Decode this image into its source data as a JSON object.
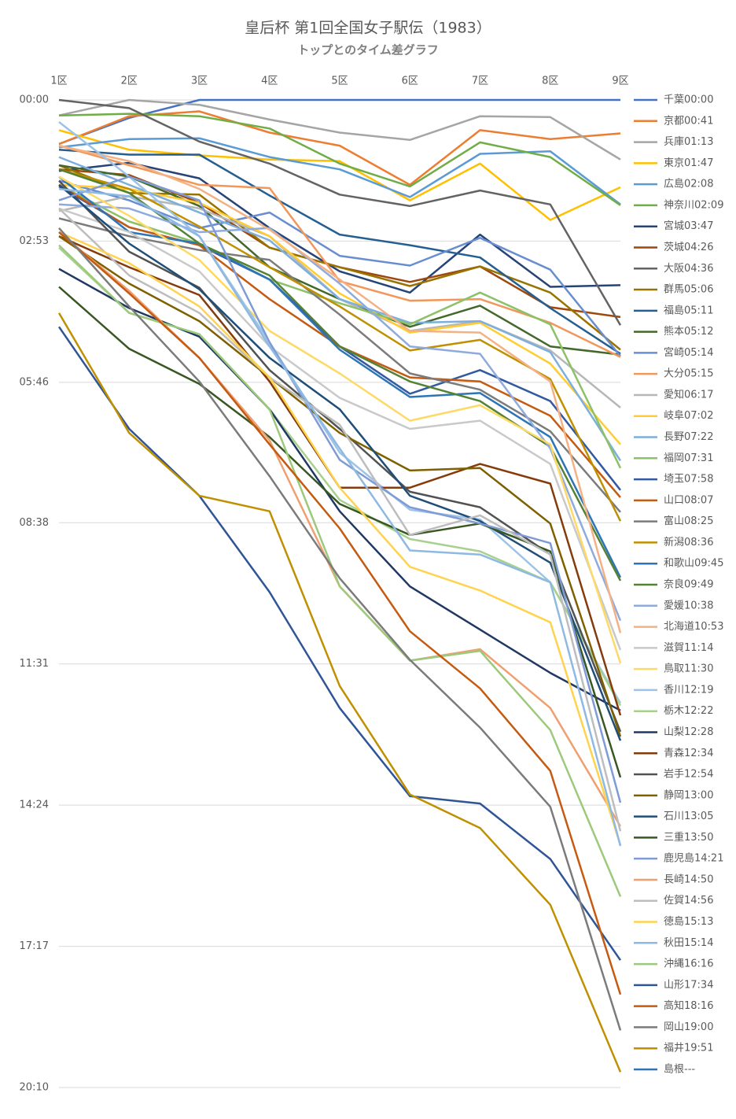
{
  "chart_data": {
    "type": "line",
    "title": "皇后杯 第1回全国女子駅伝（1983）",
    "subtitle": "トップとのタイム差グラフ",
    "categories": [
      "1区",
      "2区",
      "3区",
      "4区",
      "5区",
      "6区",
      "7区",
      "8区",
      "9区"
    ],
    "ylim": [
      0,
      1210
    ],
    "y_reversed": true,
    "x_axis_position": "top",
    "grid": true,
    "legend": "right",
    "yticks": [
      {
        "value": 0,
        "label": "00:00"
      },
      {
        "value": 173,
        "label": "02:53"
      },
      {
        "value": 346,
        "label": "05:46"
      },
      {
        "value": 518,
        "label": "08:38"
      },
      {
        "value": 691,
        "label": "11:31"
      },
      {
        "value": 864,
        "label": "14:24"
      },
      {
        "value": 1037,
        "label": "17:17"
      },
      {
        "value": 1210,
        "label": "20:10"
      }
    ],
    "series": [
      {
        "name": "千葉00:00",
        "color": "#4472C4",
        "values": [
          54,
          22,
          0,
          0,
          0,
          0,
          0,
          0,
          0
        ]
      },
      {
        "name": "京都00:41",
        "color": "#ED7D31",
        "values": [
          54,
          20,
          14,
          40,
          56,
          104,
          37,
          48,
          41
        ]
      },
      {
        "name": "兵庫01:13",
        "color": "#A5A5A5",
        "values": [
          19,
          0,
          6,
          24,
          40,
          49,
          20,
          21,
          73
        ]
      },
      {
        "name": "東京01:47",
        "color": "#FFC000",
        "values": [
          37,
          61,
          68,
          73,
          75,
          123,
          78,
          147,
          107
        ]
      },
      {
        "name": "広島02:08",
        "color": "#5B9BD5",
        "values": [
          58,
          48,
          47,
          70,
          85,
          119,
          66,
          63,
          128
        ]
      },
      {
        "name": "神奈川02:09",
        "color": "#70AD47",
        "values": [
          19,
          17,
          20,
          35,
          78,
          106,
          52,
          70,
          129
        ]
      },
      {
        "name": "宮城03:47",
        "color": "#264478",
        "values": [
          87,
          77,
          96,
          157,
          210,
          236,
          165,
          229,
          227
        ]
      },
      {
        "name": "茨城04:26",
        "color": "#9E480E",
        "values": [
          85,
          92,
          126,
          181,
          205,
          223,
          204,
          254,
          266
        ]
      },
      {
        "name": "大阪04:36",
        "color": "#636363",
        "values": [
          0,
          10,
          51,
          78,
          116,
          130,
          111,
          128,
          276
        ]
      },
      {
        "name": "群馬05:06",
        "color": "#997300",
        "values": [
          80,
          114,
          116,
          181,
          205,
          228,
          204,
          236,
          306
        ]
      },
      {
        "name": "福島05:11",
        "color": "#255E91",
        "values": [
          61,
          67,
          67,
          117,
          165,
          178,
          193,
          255,
          311
        ]
      },
      {
        "name": "熊本05:12",
        "color": "#43682B",
        "values": [
          80,
          94,
          130,
          205,
          244,
          278,
          252,
          302,
          312
        ]
      },
      {
        "name": "宮崎05:14",
        "color": "#698ED0",
        "values": [
          99,
          123,
          157,
          138,
          191,
          203,
          169,
          208,
          314
        ]
      },
      {
        "name": "大分05:15",
        "color": "#F1975A",
        "values": [
          56,
          80,
          104,
          108,
          222,
          246,
          244,
          273,
          315
        ]
      },
      {
        "name": "愛知06:17",
        "color": "#B7B7B7",
        "values": [
          136,
          118,
          133,
          167,
          244,
          283,
          271,
          307,
          377
        ]
      },
      {
        "name": "岐阜07:02",
        "color": "#FFCD33",
        "values": [
          104,
          109,
          126,
          167,
          237,
          285,
          273,
          323,
          422
        ]
      },
      {
        "name": "長野07:22",
        "color": "#7CAFDD",
        "values": [
          70,
          104,
          138,
          172,
          244,
          273,
          271,
          309,
          442
        ]
      },
      {
        "name": "福岡07:31",
        "color": "#8CC168",
        "values": [
          104,
          149,
          176,
          220,
          249,
          275,
          236,
          275,
          451
        ]
      },
      {
        "name": "埼玉07:58",
        "color": "#335AA1",
        "values": [
          106,
          156,
          178,
          220,
          302,
          360,
          331,
          369,
          478
        ]
      },
      {
        "name": "山口08:07",
        "color": "#C55A11",
        "values": [
          104,
          156,
          178,
          244,
          302,
          340,
          345,
          387,
          487
        ]
      },
      {
        "name": "富山08:25",
        "color": "#7B7B7B",
        "values": [
          145,
          167,
          184,
          196,
          263,
          335,
          355,
          406,
          505
        ]
      },
      {
        "name": "新潟08:36",
        "color": "#BF9000",
        "values": [
          85,
          109,
          155,
          205,
          253,
          307,
          294,
          342,
          516
        ]
      },
      {
        "name": "和歌山09:45",
        "color": "#2E75B6",
        "values": [
          94,
          162,
          176,
          220,
          306,
          364,
          359,
          413,
          585
        ]
      },
      {
        "name": "奈良09:49",
        "color": "#548235",
        "values": [
          85,
          114,
          176,
          215,
          302,
          345,
          369,
          425,
          589
        ]
      },
      {
        "name": "愛媛10:38",
        "color": "#8FAADC",
        "values": [
          128,
          133,
          162,
          157,
          225,
          302,
          311,
          427,
          638
        ]
      },
      {
        "name": "北海道10:53",
        "color": "#F4B183",
        "values": [
          56,
          75,
          109,
          159,
          220,
          283,
          285,
          345,
          653
        ]
      },
      {
        "name": "滋賀11:14",
        "color": "#C9C9C9",
        "values": [
          133,
          162,
          210,
          302,
          365,
          403,
          393,
          446,
          674
        ]
      },
      {
        "name": "鳥取11:30",
        "color": "#FFD966",
        "values": [
          94,
          142,
          196,
          283,
          335,
          393,
          374,
          422,
          690
        ]
      },
      {
        "name": "香川12:19",
        "color": "#9DC3E6",
        "values": [
          27,
          94,
          167,
          297,
          432,
          502,
          514,
          591,
          739
        ]
      },
      {
        "name": "栃木12:22",
        "color": "#A9D18E",
        "values": [
          181,
          261,
          287,
          379,
          490,
          538,
          553,
          591,
          742
        ]
      },
      {
        "name": "山梨12:28",
        "color": "#203864",
        "values": [
          207,
          255,
          290,
          379,
          504,
          596,
          649,
          702,
          748
        ]
      },
      {
        "name": "青森12:34",
        "color": "#843C0C",
        "values": [
          167,
          205,
          239,
          345,
          475,
          475,
          446,
          470,
          754
        ]
      },
      {
        "name": "岩手12:54",
        "color": "#525252",
        "values": [
          99,
          186,
          230,
          331,
          403,
          480,
          499,
          557,
          774
        ]
      },
      {
        "name": "静岡13:00",
        "color": "#7F6000",
        "values": [
          167,
          225,
          271,
          340,
          408,
          454,
          451,
          519,
          780
        ]
      },
      {
        "name": "石川13:05",
        "color": "#1F4E79",
        "values": [
          104,
          176,
          232,
          316,
          379,
          485,
          516,
          567,
          785
        ]
      },
      {
        "name": "三重13:50",
        "color": "#385723",
        "values": [
          229,
          305,
          348,
          413,
          495,
          533,
          519,
          553,
          830
        ]
      },
      {
        "name": "鹿児島14:21",
        "color": "#7F9BD6",
        "values": [
          123,
          94,
          123,
          297,
          441,
          499,
          519,
          543,
          861
        ]
      },
      {
        "name": "長崎14:50",
        "color": "#F0A070",
        "values": [
          162,
          234,
          316,
          417,
          596,
          687,
          673,
          745,
          890
        ]
      },
      {
        "name": "佐賀14:56",
        "color": "#BDBDBD",
        "values": [
          133,
          215,
          261,
          340,
          398,
          533,
          509,
          557,
          896
        ]
      },
      {
        "name": "徳島15:13",
        "color": "#FFD34D",
        "values": [
          162,
          200,
          253,
          340,
          475,
          572,
          601,
          640,
          913
        ]
      },
      {
        "name": "秋田15:14",
        "color": "#8DB9E2",
        "values": [
          109,
          118,
          167,
          302,
          427,
          552,
          557,
          591,
          914
        ]
      },
      {
        "name": "沖縄16:16",
        "color": "#9CC97B",
        "values": [
          178,
          261,
          287,
          379,
          596,
          687,
          675,
          772,
          976
        ]
      },
      {
        "name": "山形17:34",
        "color": "#2F5597",
        "values": [
          278,
          403,
          485,
          603,
          745,
          853,
          862,
          930,
          1054
        ]
      },
      {
        "name": "高知18:16",
        "color": "#C55A11",
        "values": [
          162,
          237,
          316,
          422,
          525,
          651,
          721,
          822,
          1096
        ]
      },
      {
        "name": "岡山19:00",
        "color": "#7B7B7B",
        "values": [
          157,
          253,
          345,
          461,
          586,
          686,
          769,
          866,
          1140
        ]
      },
      {
        "name": "福井19:51",
        "color": "#BF9000",
        "values": [
          261,
          408,
          485,
          504,
          718,
          851,
          892,
          986,
          1191
        ]
      },
      {
        "name": "島根---",
        "color": "#2E75B6",
        "values": [
          null,
          null,
          null,
          null,
          null,
          null,
          null,
          null,
          null
        ]
      }
    ]
  }
}
